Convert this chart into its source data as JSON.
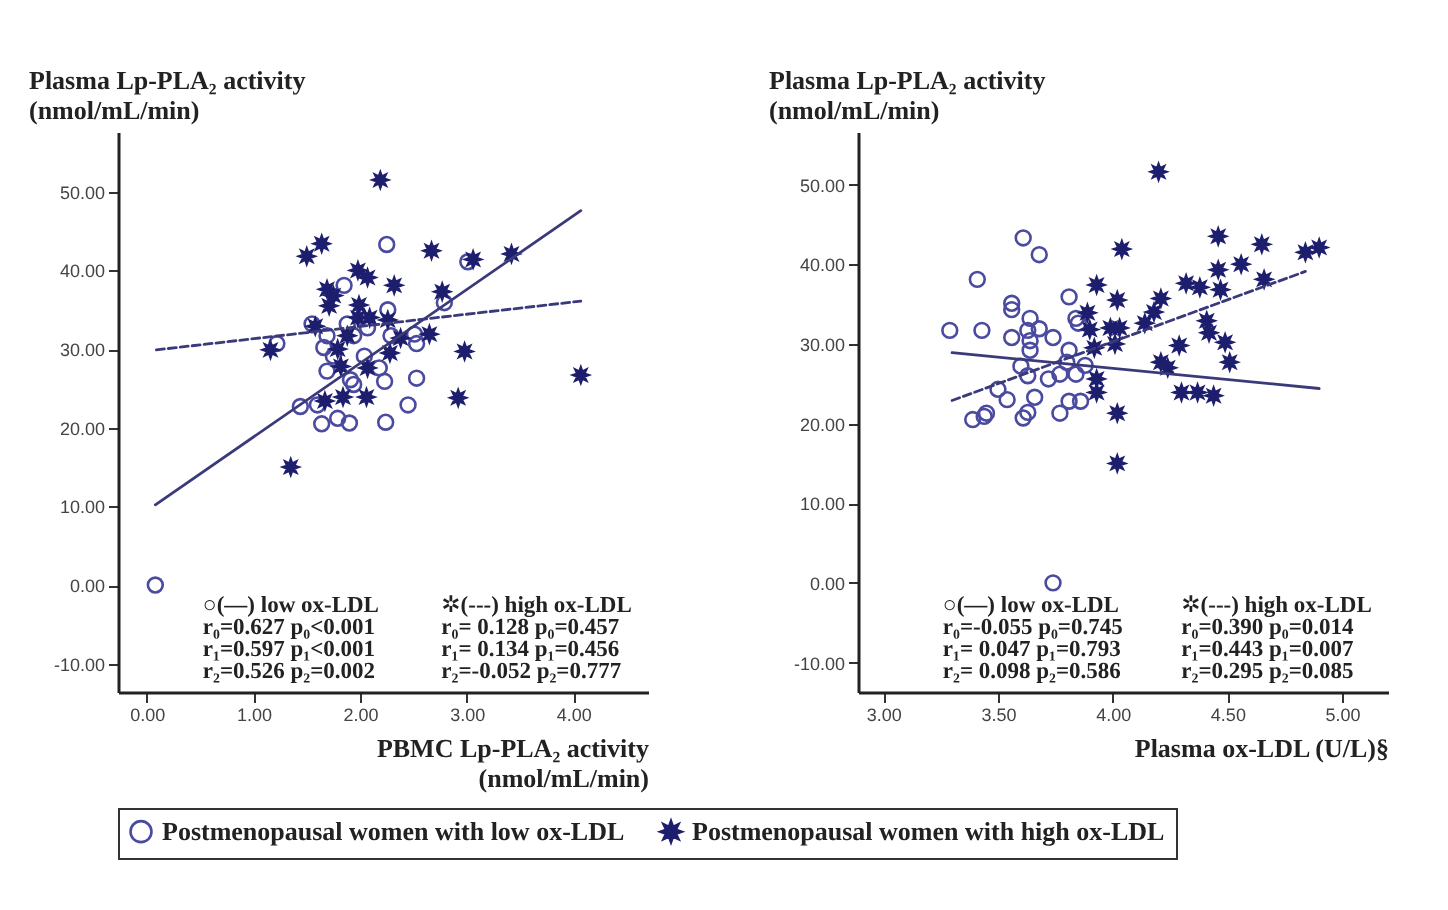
{
  "chart_data": [
    {
      "type": "scatter",
      "ylabel": "Plasma Lp-PLA₂ activity (nmol/mL/min)",
      "xlabel": "PBMC Lp-PLA₂ activity (nmol/mL/min)",
      "xlim": [
        -0.27,
        4.7
      ],
      "ylim": [
        -13.6,
        57.6
      ],
      "xticks": [
        {
          "value": 0,
          "label": "0.00"
        },
        {
          "value": 1,
          "label": "1.00"
        },
        {
          "value": 2,
          "label": "2.00"
        },
        {
          "value": 3,
          "label": "3.00"
        },
        {
          "value": 4,
          "label": "4.00"
        }
      ],
      "yticks": [
        {
          "value": -10,
          "label": "-10.00"
        },
        {
          "value": 0,
          "label": "0.00"
        },
        {
          "value": 10,
          "label": "10.00"
        },
        {
          "value": 20,
          "label": "20.00"
        },
        {
          "value": 30,
          "label": "30.00"
        },
        {
          "value": 40,
          "label": "40.00"
        },
        {
          "value": 50,
          "label": "50.00"
        }
      ],
      "legend": "bottom",
      "series": [
        {
          "name": "Postmenopausal women with low ox-LDL",
          "type": "scatter",
          "marker": "circle",
          "color": "#4a4aa0",
          "x": [
            2.25,
            1.85,
            2.79,
            3.01,
            2.26,
            1.88,
            1.55,
            2.07,
            1.69,
            1.94,
            2.29,
            2.51,
            1.22,
            1.66,
            2.53,
            1.75,
            2.04,
            1.69,
            2.18,
            1.91,
            1.94,
            2.23,
            2.53,
            1.44,
            1.6,
            2.45,
            1.64,
            1.79,
            1.9,
            2.24,
            0.08
          ],
          "values": [
            43.3,
            38.1,
            35.9,
            41.1,
            35.0,
            33.2,
            33.2,
            32.7,
            31.7,
            31.7,
            31.7,
            31.9,
            30.7,
            30.2,
            30.7,
            29.1,
            29.1,
            27.2,
            27.6,
            26.1,
            25.5,
            25.9,
            26.3,
            22.7,
            22.9,
            22.9,
            20.5,
            21.2,
            20.6,
            20.7,
            0.0
          ]
        },
        {
          "name": "Postmenopausal women with high ox-LDL",
          "type": "scatter",
          "marker": "star",
          "color": "#1e1e6e",
          "x": [
            2.19,
            1.64,
            1.5,
            2.67,
            3.42,
            3.06,
            1.98,
            2.07,
            2.32,
            1.69,
            1.75,
            1.71,
            1.99,
            2.77,
            1.98,
            2.09,
            2.26,
            1.58,
            1.88,
            2.38,
            2.65,
            1.16,
            1.79,
            2.28,
            2.98,
            1.82,
            2.07,
            4.07,
            1.67,
            1.84,
            2.06,
            2.92,
            1.35
          ],
          "values": [
            51.5,
            43.4,
            41.8,
            42.5,
            42.1,
            41.4,
            40.0,
            39.1,
            38.1,
            37.6,
            36.8,
            35.5,
            35.6,
            37.3,
            34.0,
            34.0,
            33.7,
            32.9,
            31.7,
            31.4,
            31.9,
            29.9,
            30.0,
            29.5,
            29.7,
            27.8,
            27.6,
            26.7,
            23.4,
            23.9,
            23.9,
            23.8,
            15.0
          ]
        },
        {
          "type": "line",
          "line_style": "solid",
          "color": "#3a3a7a",
          "x": [
            0.08,
            4.07
          ],
          "values": [
            10.2,
            47.6
          ]
        },
        {
          "type": "line",
          "line_style": "dashed",
          "color": "#3a3a7a",
          "x": [
            0.09,
            4.07
          ],
          "values": [
            29.9,
            36.1
          ]
        }
      ],
      "annotations": [
        "○(—) low ox-LDL",
        "✲(---) high ox-LDL",
        "r₀=0.627 p₀<0.001",
        "r₀= 0.128 p₀=0.457",
        "r₁=0.597 p₁<0.001",
        "r₁= 0.134 p₁=0.456",
        "r₂=0.526 p₂=0.002",
        "r₂=-0.052 p₂=0.777"
      ]
    },
    {
      "type": "scatter",
      "ylabel": "Plasma Lp-PLA₂ activity (nmol/mL/min)",
      "xlabel": "Plasma ox-LDL (U/L)§",
      "xlim": [
        2.89,
        5.2
      ],
      "ylim": [
        -13.7,
        56.6
      ],
      "xticks": [
        {
          "value": 3,
          "label": "3.00"
        },
        {
          "value": 3.5,
          "label": "3.50"
        },
        {
          "value": 4,
          "label": "4.00"
        },
        {
          "value": 4.5,
          "label": "4.50"
        },
        {
          "value": 5,
          "label": "5.00"
        }
      ],
      "yticks": [
        {
          "value": -10,
          "label": "-10.00"
        },
        {
          "value": 0,
          "label": "0.00"
        },
        {
          "value": 10,
          "label": "10.00"
        },
        {
          "value": 20,
          "label": "20.00"
        },
        {
          "value": 30,
          "label": "30.00"
        },
        {
          "value": 40,
          "label": "40.00"
        },
        {
          "value": 50,
          "label": "50.00"
        }
      ],
      "legend": "bottom",
      "series": [
        {
          "name": "Postmenopausal women with low ox-LDL",
          "type": "scatter",
          "marker": "circle",
          "color": "#4a4aa0",
          "x": [
            3.61,
            3.68,
            3.41,
            3.81,
            3.56,
            3.56,
            3.84,
            3.85,
            3.64,
            3.29,
            3.43,
            3.63,
            3.68,
            3.56,
            3.64,
            3.74,
            3.64,
            3.81,
            3.6,
            3.8,
            3.88,
            3.84,
            3.63,
            3.72,
            3.77,
            3.5,
            3.54,
            3.66,
            3.81,
            3.86,
            3.63,
            3.61,
            3.77,
            3.39,
            3.44,
            3.45,
            3.74
          ],
          "values": [
            43.3,
            41.2,
            38.1,
            35.9,
            35.1,
            34.3,
            33.2,
            32.6,
            33.2,
            31.7,
            31.7,
            31.7,
            31.9,
            30.8,
            30.4,
            30.8,
            29.2,
            29.2,
            27.2,
            27.7,
            27.3,
            26.2,
            26.0,
            25.6,
            26.2,
            24.3,
            23.0,
            23.3,
            22.8,
            22.8,
            21.4,
            20.7,
            21.3,
            20.5,
            20.9,
            21.3,
            0.0
          ]
        },
        {
          "name": "Postmenopausal women with high ox-LDL",
          "type": "scatter",
          "marker": "star",
          "color": "#1e1e6e",
          "x": [
            4.2,
            4.46,
            4.65,
            4.9,
            4.84,
            4.04,
            4.56,
            4.46,
            4.66,
            3.93,
            4.32,
            4.38,
            4.47,
            4.02,
            4.21,
            4.18,
            3.89,
            4.14,
            4.41,
            3.99,
            4.03,
            3.9,
            4.42,
            4.01,
            3.92,
            4.29,
            4.49,
            4.21,
            4.24,
            4.51,
            3.93,
            3.93,
            4.3,
            4.37,
            4.44,
            4.02,
            4.02
          ],
          "values": [
            51.6,
            43.5,
            42.5,
            42.1,
            41.5,
            41.9,
            40.0,
            39.3,
            38.1,
            37.4,
            37.6,
            37.1,
            36.8,
            35.5,
            35.7,
            34.0,
            33.9,
            32.6,
            32.9,
            32.0,
            32.0,
            31.8,
            31.4,
            30.0,
            29.5,
            29.8,
            30.2,
            27.7,
            27.0,
            27.7,
            25.6,
            23.9,
            23.9,
            23.9,
            23.5,
            21.3,
            15.0
          ]
        },
        {
          "type": "line",
          "line_style": "solid",
          "color": "#3a3a7a",
          "x": [
            3.3,
            4.9
          ],
          "values": [
            28.9,
            24.4
          ]
        },
        {
          "type": "line",
          "line_style": "dashed",
          "color": "#3a3a7a",
          "x": [
            3.3,
            4.84
          ],
          "values": [
            22.9,
            39.1
          ]
        }
      ],
      "annotations": [
        "○(—) low ox-LDL",
        "✲(---) high ox-LDL",
        "r₀=-0.055 p₀=0.745",
        "r₀=0.390 p₀=0.014",
        "r₁= 0.047 p₁=0.793",
        "r₁=0.443 p₁=0.007",
        "r₂= 0.098 p₂=0.586",
        "r₂=0.295 p₂=0.085"
      ]
    }
  ]
}
